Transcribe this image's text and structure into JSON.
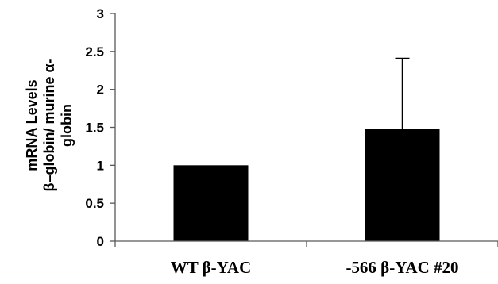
{
  "chart_data": {
    "type": "bar",
    "categories": [
      "WT β-YAC",
      "-566 β-YAC #20"
    ],
    "values": [
      1,
      1.48
    ],
    "error_upper": [
      0,
      0.93
    ],
    "title": "",
    "xlabel": "",
    "ylabel_lines": [
      "mRNA Levels",
      "β–globin/ murine α-",
      "globin"
    ],
    "ylim": [
      0,
      3
    ],
    "yticks": [
      0,
      0.5,
      1,
      1.5,
      2,
      2.5,
      3
    ],
    "ytick_labels": [
      "0",
      "0.5",
      "1",
      "1.5",
      "2",
      "2.5",
      "3"
    ],
    "grid": false,
    "legend": "none",
    "bar_color": "#000000",
    "axis_color": "#595959"
  }
}
